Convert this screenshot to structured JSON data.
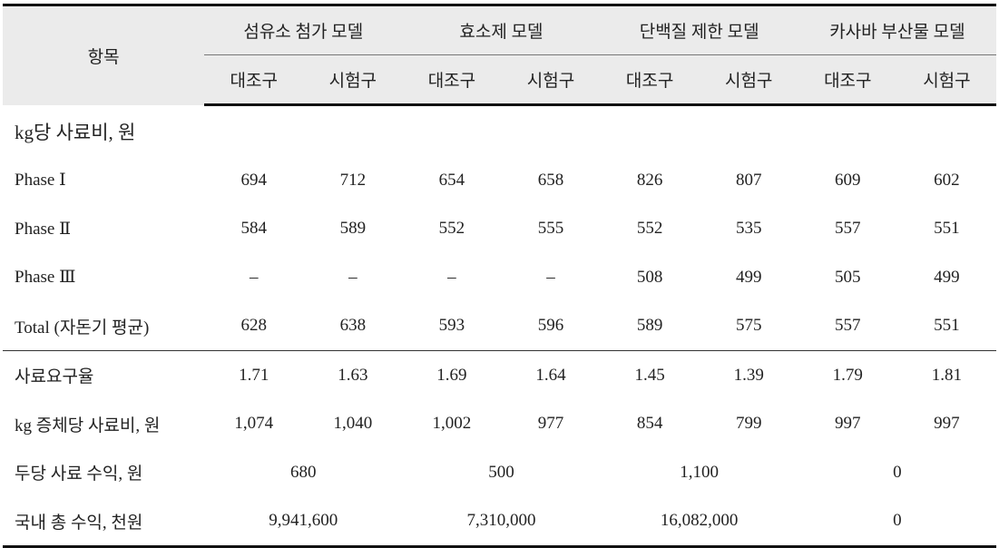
{
  "table": {
    "header": {
      "item": "항목",
      "groups": [
        "섬유소 첨가 모델",
        "효소제 모델",
        "단백질 제한 모델",
        "카사바 부산물 모델"
      ],
      "subgroups": [
        [
          "대조구",
          "시험구"
        ],
        [
          "대조구",
          "시험구"
        ],
        [
          "대조구",
          "시험구"
        ],
        [
          "대조구",
          "시험구"
        ]
      ]
    },
    "body_groups": [
      [
        {
          "label": "kg당 사료비, 원"
        },
        {
          "label": "Phase Ⅰ",
          "values": [
            "694",
            "712",
            "654",
            "658",
            "826",
            "807",
            "609",
            "602"
          ]
        },
        {
          "label": "Phase Ⅱ",
          "values": [
            "584",
            "589",
            "552",
            "555",
            "552",
            "535",
            "557",
            "551"
          ]
        },
        {
          "label": "Phase Ⅲ",
          "values": [
            "–",
            "–",
            "–",
            "–",
            "508",
            "499",
            "505",
            "499"
          ]
        },
        {
          "label": "Total (자돈기 평균)",
          "values": [
            "628",
            "638",
            "593",
            "596",
            "589",
            "575",
            "557",
            "551"
          ]
        }
      ],
      [
        {
          "label": "사료요구율",
          "values": [
            "1.71",
            "1.63",
            "1.69",
            "1.64",
            "1.45",
            "1.39",
            "1.79",
            "1.81"
          ]
        },
        {
          "label": "kg 증체당 사료비, 원",
          "values": [
            "1,074",
            "1,040",
            "1,002",
            "977",
            "854",
            "799",
            "997",
            "997"
          ]
        },
        {
          "label": "두당 사료 수익, 원",
          "values": [
            "680",
            "500",
            "1,100",
            "0"
          ]
        },
        {
          "label": "국내 총 수익, 천원",
          "values": [
            "9,941,600",
            "7,310,000",
            "16,082,000",
            "0"
          ]
        }
      ]
    ]
  }
}
